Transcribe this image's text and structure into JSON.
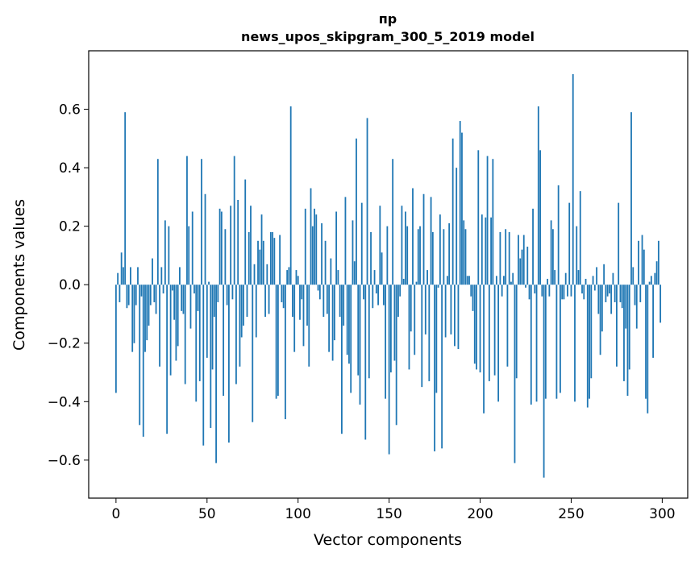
{
  "chart_data": {
    "type": "bar",
    "title": "пр",
    "subtitle": "news_upos_skipgram_300_5_2019 model",
    "xlabel": "Vector components",
    "ylabel": "Components values",
    "xlim": [
      -15,
      314
    ],
    "ylim": [
      -0.73,
      0.8
    ],
    "xticks": [
      {
        "value": 0,
        "label": "0"
      },
      {
        "value": 50,
        "label": "50"
      },
      {
        "value": 100,
        "label": "100"
      },
      {
        "value": 150,
        "label": "150"
      },
      {
        "value": 200,
        "label": "200"
      },
      {
        "value": 250,
        "label": "250"
      },
      {
        "value": 300,
        "label": "300"
      }
    ],
    "yticks": [
      {
        "value": -0.6,
        "label": "−0.6"
      },
      {
        "value": -0.4,
        "label": "−0.4"
      },
      {
        "value": -0.2,
        "label": "−0.2"
      },
      {
        "value": 0.0,
        "label": "0.0"
      },
      {
        "value": 0.2,
        "label": "0.2"
      },
      {
        "value": 0.4,
        "label": "0.4"
      },
      {
        "value": 0.6,
        "label": "0.6"
      }
    ],
    "bar_color": "#1f77b4",
    "x_start": 0,
    "values": [
      -0.37,
      0.04,
      -0.06,
      0.11,
      0.06,
      0.59,
      -0.08,
      -0.07,
      0.06,
      -0.23,
      -0.2,
      -0.07,
      0.06,
      -0.48,
      -0.04,
      -0.52,
      -0.23,
      -0.19,
      -0.14,
      -0.07,
      0.09,
      -0.06,
      -0.1,
      0.43,
      -0.28,
      0.06,
      -0.03,
      0.22,
      -0.51,
      0.2,
      -0.31,
      -0.02,
      -0.12,
      -0.26,
      -0.21,
      0.06,
      -0.09,
      -0.1,
      -0.34,
      0.44,
      0.2,
      -0.15,
      0.25,
      -0.03,
      -0.4,
      -0.09,
      -0.33,
      0.43,
      -0.55,
      0.31,
      -0.25,
      0.01,
      -0.49,
      -0.29,
      -0.11,
      -0.61,
      -0.06,
      0.26,
      0.25,
      -0.38,
      0.19,
      -0.07,
      -0.54,
      0.27,
      -0.05,
      0.44,
      -0.34,
      0.29,
      -0.28,
      -0.18,
      -0.14,
      0.36,
      -0.11,
      0.18,
      0.27,
      -0.47,
      0.07,
      -0.18,
      0.15,
      0.12,
      0.24,
      0.15,
      -0.11,
      0.07,
      -0.1,
      0.18,
      0.18,
      0.16,
      -0.39,
      -0.38,
      0.17,
      -0.06,
      -0.08,
      -0.46,
      0.05,
      0.06,
      0.61,
      -0.11,
      -0.23,
      0.05,
      0.03,
      -0.12,
      -0.05,
      -0.21,
      0.26,
      -0.14,
      -0.28,
      0.33,
      0.2,
      0.26,
      0.24,
      -0.02,
      -0.05,
      0.21,
      -0.11,
      0.15,
      -0.1,
      -0.23,
      0.09,
      -0.26,
      -0.19,
      0.25,
      0.05,
      -0.11,
      -0.51,
      -0.14,
      0.3,
      -0.24,
      -0.27,
      -0.37,
      0.22,
      0.08,
      0.5,
      -0.31,
      -0.41,
      0.28,
      -0.05,
      -0.53,
      0.57,
      -0.32,
      0.18,
      -0.08,
      0.05,
      -0.03,
      -0.07,
      0.27,
      0.11,
      -0.07,
      -0.39,
      0.2,
      -0.58,
      -0.3,
      0.43,
      -0.26,
      -0.48,
      -0.11,
      -0.04,
      0.27,
      0.02,
      0.25,
      0.2,
      -0.29,
      -0.16,
      0.33,
      -0.24,
      0.01,
      0.19,
      0.2,
      -0.35,
      0.31,
      -0.17,
      0.05,
      -0.33,
      0.3,
      0.18,
      -0.57,
      -0.37,
      -0.01,
      0.24,
      -0.56,
      0.19,
      -0.18,
      0.03,
      0.21,
      -0.17,
      0.5,
      -0.21,
      0.4,
      -0.22,
      0.56,
      0.52,
      0.22,
      0.19,
      0.03,
      0.03,
      -0.04,
      -0.09,
      -0.27,
      -0.29,
      0.46,
      -0.3,
      0.24,
      -0.44,
      0.23,
      0.44,
      -0.33,
      0.23,
      0.43,
      -0.31,
      0.03,
      -0.4,
      0.18,
      -0.04,
      0.03,
      0.19,
      -0.28,
      0.18,
      0.01,
      0.04,
      -0.61,
      -0.32,
      0.17,
      0.09,
      0.12,
      0.17,
      -0.01,
      0.13,
      -0.05,
      -0.41,
      0.26,
      -0.03,
      -0.4,
      0.61,
      0.46,
      -0.04,
      -0.66,
      -0.39,
      0.02,
      -0.04,
      0.22,
      0.19,
      0.05,
      -0.39,
      0.34,
      -0.37,
      -0.05,
      -0.05,
      0.04,
      -0.04,
      0.28,
      -0.04,
      0.72,
      -0.4,
      0.2,
      0.05,
      0.32,
      -0.03,
      -0.05,
      0.02,
      -0.42,
      -0.39,
      -0.32,
      0.03,
      -0.02,
      0.06,
      -0.1,
      -0.24,
      -0.16,
      0.07,
      -0.06,
      -0.04,
      -0.03,
      -0.1,
      0.04,
      -0.06,
      -0.28,
      0.28,
      -0.06,
      -0.08,
      -0.33,
      -0.15,
      -0.38,
      -0.29,
      0.59,
      0.06,
      -0.07,
      -0.15,
      0.15,
      -0.06,
      0.17,
      0.12,
      -0.39,
      -0.44,
      0.01,
      0.03,
      -0.25,
      0.04,
      0.08,
      0.15,
      -0.13
    ]
  }
}
